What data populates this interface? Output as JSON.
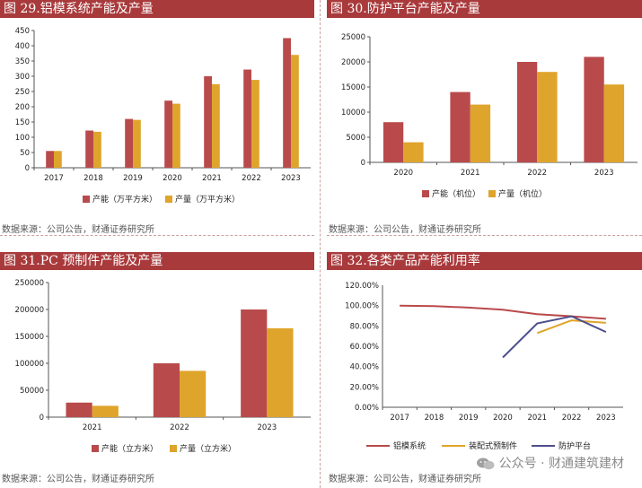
{
  "panels": [
    {
      "title": "图 29.铝模系统产能及产量",
      "source": "数据来源：公司公告，财通证券研究所",
      "chart_data": {
        "type": "bar",
        "categories": [
          "2017",
          "2018",
          "2019",
          "2020",
          "2021",
          "2022",
          "2023"
        ],
        "series": [
          {
            "name": "产能（万平方米）",
            "values": [
              55,
              122,
              160,
              220,
              300,
              322,
              425
            ],
            "color": "#b94a4c"
          },
          {
            "name": "产量（万平方米）",
            "values": [
              55,
              118,
              157,
              210,
              274,
              288,
              370
            ],
            "color": "#dfa42b"
          }
        ],
        "ylim": [
          0,
          450
        ],
        "yticks": [
          "0",
          "50",
          "100",
          "150",
          "200",
          "250",
          "300",
          "350",
          "400",
          "450"
        ],
        "legend_position": "bottom"
      }
    },
    {
      "title": "图 30.防护平台产能及产量",
      "source": "数据来源：公司公告，财通证券研究所",
      "chart_data": {
        "type": "bar",
        "categories": [
          "2020",
          "2021",
          "2022",
          "2023"
        ],
        "series": [
          {
            "name": "产能（机位）",
            "values": [
              8000,
              14000,
              20000,
              21000
            ],
            "color": "#b94a4c"
          },
          {
            "name": "产量（机位）",
            "values": [
              4000,
              11500,
              18000,
              15500
            ],
            "color": "#dfa42b"
          }
        ],
        "ylim": [
          0,
          25000
        ],
        "yticks": [
          "0",
          "5000",
          "10000",
          "15000",
          "20000",
          "25000"
        ],
        "legend_position": "bottom"
      }
    },
    {
      "title": "图 31.PC 预制件产能及产量",
      "source": "数据来源：公司公告，财通证券研究所",
      "chart_data": {
        "type": "bar",
        "categories": [
          "2021",
          "2022",
          "2023"
        ],
        "series": [
          {
            "name": "产能（立方米）",
            "values": [
              27000,
              100000,
              200000
            ],
            "color": "#b94a4c"
          },
          {
            "name": "产量（立方米）",
            "values": [
              21000,
              86000,
              165000
            ],
            "color": "#dfa42b"
          }
        ],
        "ylim": [
          0,
          250000
        ],
        "yticks": [
          "0",
          "50000",
          "100000",
          "150000",
          "200000",
          "250000"
        ],
        "legend_position": "bottom"
      }
    },
    {
      "title": "图 32.各类产品产能利用率",
      "source": "数据来源：公司公告，财通证券研究所",
      "chart_data": {
        "type": "line",
        "categories": [
          "2017",
          "2018",
          "2019",
          "2020",
          "2021",
          "2022",
          "2023"
        ],
        "series": [
          {
            "name": "铝模系统",
            "values": [
              100,
              99.5,
              98,
              96,
              91.5,
              89.5,
              87
            ],
            "color": "#b94a4c"
          },
          {
            "name": "装配式预制件",
            "values": [
              null,
              null,
              null,
              null,
              73,
              85.5,
              83
            ],
            "color": "#dfa42b"
          },
          {
            "name": "防护平台",
            "values": [
              null,
              null,
              null,
              49,
              82.5,
              89.5,
              74
            ],
            "color": "#4d4f8c"
          }
        ],
        "ylim": [
          0,
          120
        ],
        "yticks": [
          "0.00%",
          "20.00%",
          "40.00%",
          "60.00%",
          "80.00%",
          "100.00%",
          "120.00%"
        ],
        "legend_position": "bottom"
      }
    }
  ],
  "watermark": {
    "text": "公众号 · 财通建筑建材",
    "icon": "wechat-icon"
  }
}
